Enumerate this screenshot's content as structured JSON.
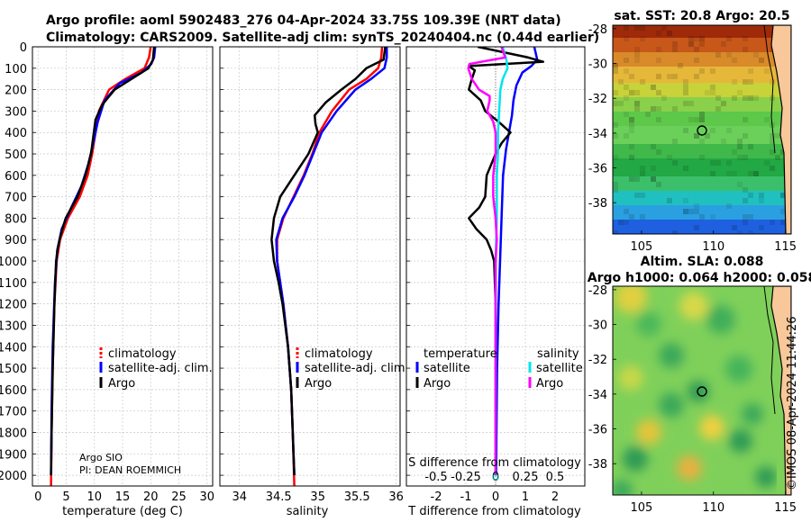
{
  "header": {
    "title_line1": "Argo profile: aoml 5902483_276 04-Apr-2024 33.75S 109.39E (NRT data)",
    "title_line2": "Climatology: CARS2009. Satellite-adj clim: synTS_20240404.nc (0.44d earlier)"
  },
  "colors": {
    "climatology": "#ff0000",
    "satellite": "#0000ff",
    "argo": "#000000",
    "sat_salinity": "#00e5ee",
    "argo_salinity": "#ff00ff",
    "land": "#f8c79a"
  },
  "depth_ticks": [
    "0",
    "100",
    "200",
    "300",
    "400",
    "500",
    "600",
    "700",
    "800",
    "900",
    "1000",
    "1100",
    "1200",
    "1300",
    "1400",
    "1500",
    "1600",
    "1700",
    "1800",
    "1900",
    "2000"
  ],
  "credits": {
    "line1": "Argo SIO",
    "line2": "PI: DEAN ROEMMICH"
  },
  "chart_data": [
    {
      "type": "line",
      "name": "temperature profile",
      "xlabel": "temperature (deg C)",
      "ylabel": "depth",
      "xlim": [
        -1,
        31
      ],
      "ylim": [
        2050,
        0
      ],
      "x_ticks": [
        "0",
        "5",
        "10",
        "15",
        "20",
        "25",
        "30"
      ],
      "legend": [
        "climatology",
        "satellite-adj. clim.",
        "Argo"
      ],
      "series": [
        {
          "name": "climatology",
          "depth": [
            0,
            50,
            100,
            150,
            200,
            300,
            400,
            500,
            600,
            700,
            800,
            900,
            1000,
            1200,
            1500,
            1800,
            2050
          ],
          "values": [
            20.0,
            19.7,
            18.9,
            15.5,
            12.6,
            10.8,
            10.2,
            9.6,
            8.8,
            7.4,
            5.3,
            3.9,
            3.3,
            2.9,
            2.6,
            2.4,
            2.3
          ]
        },
        {
          "name": "satellite-adj. clim.",
          "depth": [
            0,
            50,
            80,
            120,
            170,
            250,
            350,
            450,
            550,
            650,
            750,
            850,
            950,
            1100,
            1400,
            1700,
            2000
          ],
          "values": [
            20.8,
            20.6,
            20.1,
            18.4,
            14.5,
            11.8,
            10.6,
            9.8,
            8.9,
            7.7,
            5.9,
            4.2,
            3.4,
            3.0,
            2.6,
            2.4,
            2.3
          ]
        },
        {
          "name": "Argo",
          "depth": [
            0,
            60,
            100,
            140,
            200,
            270,
            340,
            420,
            500,
            600,
            700,
            800,
            880,
            940,
            1000,
            1200,
            1500,
            1800,
            2000
          ],
          "values": [
            20.6,
            20.4,
            19.6,
            17.2,
            13.6,
            11.4,
            10.2,
            9.8,
            9.4,
            8.4,
            7.0,
            4.9,
            4.0,
            3.5,
            3.2,
            2.9,
            2.6,
            2.4,
            2.3
          ]
        }
      ]
    },
    {
      "type": "line",
      "name": "salinity profile",
      "xlabel": "salinity",
      "ylabel": "depth",
      "xlim": [
        33.75,
        36.05
      ],
      "ylim": [
        2050,
        0
      ],
      "x_ticks": [
        "34",
        "34.5",
        "35",
        "35.5",
        "36"
      ],
      "legend": [
        "climatology",
        "satellite-adj. clim.",
        "Argo"
      ],
      "series": [
        {
          "name": "climatology",
          "depth": [
            0,
            50,
            100,
            150,
            200,
            300,
            400,
            500,
            600,
            700,
            800,
            900,
            1000,
            1100,
            1200,
            1400,
            1600,
            1800,
            2050
          ],
          "values": [
            35.82,
            35.81,
            35.77,
            35.62,
            35.4,
            35.18,
            35.02,
            34.93,
            34.82,
            34.69,
            34.56,
            34.48,
            34.48,
            34.52,
            34.56,
            34.62,
            34.66,
            34.68,
            34.7
          ]
        },
        {
          "name": "satellite-adj. clim.",
          "depth": [
            0,
            50,
            100,
            150,
            200,
            300,
            400,
            500,
            600,
            700,
            800,
            900,
            1000,
            1100,
            1200,
            1400,
            1600,
            1800,
            2000
          ],
          "values": [
            35.88,
            35.88,
            35.85,
            35.68,
            35.48,
            35.24,
            35.05,
            34.94,
            34.83,
            34.7,
            34.55,
            34.47,
            34.48,
            34.52,
            34.56,
            34.62,
            34.66,
            34.68,
            34.7
          ]
        },
        {
          "name": "Argo",
          "depth": [
            0,
            60,
            100,
            150,
            200,
            260,
            320,
            360,
            400,
            500,
            600,
            700,
            800,
            900,
            1000,
            1100,
            1200,
            1400,
            1600,
            1800,
            2000
          ],
          "values": [
            35.86,
            35.84,
            35.62,
            35.48,
            35.3,
            35.1,
            34.96,
            34.97,
            35.0,
            34.88,
            34.7,
            34.52,
            34.44,
            34.41,
            34.44,
            34.5,
            34.55,
            34.62,
            34.66,
            34.68,
            34.7
          ]
        }
      ]
    },
    {
      "type": "line",
      "name": "difference from climatology",
      "xlabel": "T difference from climatology",
      "xlabel_top": "S difference from climatology",
      "ylabel": "depth",
      "xlim": [
        -3,
        3
      ],
      "ylim": [
        2050,
        0
      ],
      "x_ticks": [
        "-2",
        "-1",
        "0",
        "1",
        "2"
      ],
      "s_ticks": [
        "-0.5",
        "-0.25",
        "0",
        "0.25",
        "0.5"
      ],
      "legend_titles": [
        "temperature",
        "salinity"
      ],
      "legend": [
        "satellite",
        "Argo",
        "satellite",
        "Argo"
      ],
      "series": [
        {
          "name": "T satellite",
          "depth": [
            0,
            60,
            90,
            120,
            180,
            250,
            320,
            400,
            480,
            600,
            800,
            1000,
            1200,
            1500,
            1800,
            2000
          ],
          "values": [
            1.3,
            1.4,
            1.2,
            0.9,
            0.7,
            0.6,
            0.55,
            0.45,
            0.35,
            0.25,
            0.2,
            0.15,
            0.1,
            0.05,
            0.03,
            0.02
          ]
        },
        {
          "name": "T Argo",
          "depth": [
            0,
            50,
            70,
            90,
            110,
            150,
            200,
            250,
            300,
            350,
            400,
            450,
            500,
            600,
            700,
            750,
            800,
            850,
            900,
            950,
            1000,
            1200,
            1500,
            1800,
            2000
          ],
          "values": [
            -0.6,
            1.1,
            1.6,
            -0.9,
            -0.7,
            -0.8,
            -0.9,
            -0.5,
            -0.35,
            0.1,
            0.5,
            0.2,
            0.0,
            -0.3,
            -0.35,
            -0.55,
            -0.9,
            -0.65,
            -0.3,
            -0.15,
            -0.05,
            0.0,
            0.0,
            0.0,
            0.0
          ]
        },
        {
          "name": "S satellite",
          "depth": [
            0,
            60,
            100,
            150,
            200,
            300,
            400,
            500,
            600,
            800,
            1000,
            1200,
            1500,
            1800,
            2000
          ],
          "values": [
            0.06,
            0.09,
            0.1,
            0.06,
            0.04,
            0.03,
            0.02,
            0.02,
            0.01,
            0.01,
            0.0,
            0.0,
            0.0,
            0.0,
            0.0
          ]
        },
        {
          "name": "S Argo",
          "depth": [
            0,
            50,
            80,
            100,
            150,
            200,
            230,
            250,
            300,
            350,
            400,
            500,
            600,
            700,
            800,
            900,
            1000,
            1200,
            1500,
            1800,
            2000
          ],
          "values": [
            0.05,
            0.08,
            -0.22,
            -0.23,
            -0.2,
            -0.14,
            -0.05,
            -0.05,
            -0.07,
            -0.02,
            0.0,
            0.0,
            -0.02,
            -0.02,
            0.0,
            0.01,
            0.0,
            0.0,
            0.0,
            0.0,
            0.0
          ]
        }
      ]
    },
    {
      "type": "heatmap",
      "name": "satellite SST map",
      "title": "sat. SST: 20.8 Argo: 20.5",
      "x_ticks": [
        "105",
        "110",
        "115"
      ],
      "y_ticks": [
        "-28",
        "-30",
        "-32",
        "-34",
        "-36",
        "-38"
      ],
      "xlim": [
        103,
        115.4
      ],
      "ylim": [
        -39.8,
        -27.8
      ],
      "marker": {
        "lon": 109.39,
        "lat": -33.75
      }
    },
    {
      "type": "heatmap",
      "name": "altimetry SLA map",
      "title_line1": "Altim. SLA: 0.088",
      "title_line2": "Argo h1000: 0.064 h2000: 0.058",
      "x_ticks": [
        "105",
        "110",
        "115"
      ],
      "y_ticks": [
        "-28",
        "-30",
        "-32",
        "-34",
        "-36",
        "-38"
      ],
      "xlim": [
        103,
        115.4
      ],
      "ylim": [
        -39.8,
        -27.8
      ],
      "marker": {
        "lon": 109.39,
        "lat": -33.75
      }
    }
  ],
  "copyright": "©IMOS 08-Apr-2024 11:44:26"
}
